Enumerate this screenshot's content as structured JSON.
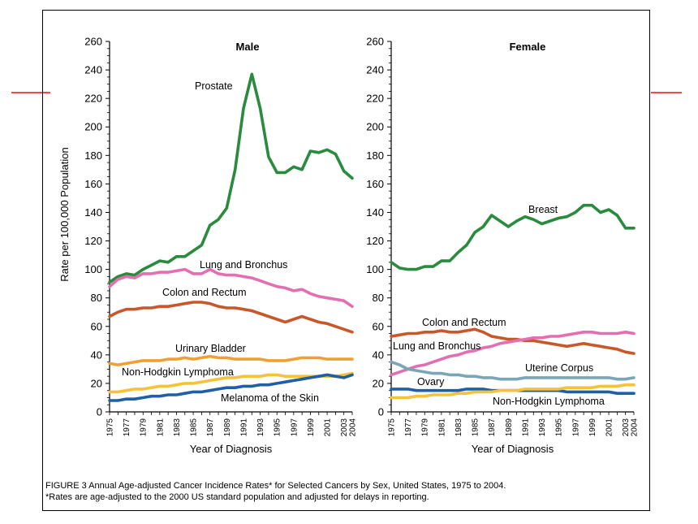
{
  "chart_data": [
    {
      "type": "line",
      "title": "Male",
      "ylabel": "Rate per 100,000 Population",
      "xlabel": "Year of Diagnosis",
      "ylim": [
        0,
        260
      ],
      "yticks": [
        0,
        20,
        40,
        60,
        80,
        100,
        120,
        140,
        160,
        180,
        200,
        220,
        240,
        260
      ],
      "xticks": [
        "1975",
        "1977",
        "1979",
        "1981",
        "1983",
        "1985",
        "1987",
        "1989",
        "1991",
        "1993",
        "1995",
        "1997",
        "1999",
        "2001",
        "2003",
        "2004"
      ],
      "x": [
        1975,
        1976,
        1977,
        1978,
        1979,
        1980,
        1981,
        1982,
        1983,
        1984,
        1985,
        1986,
        1987,
        1988,
        1989,
        1990,
        1991,
        1992,
        1993,
        1994,
        1995,
        1996,
        1997,
        1998,
        1999,
        2000,
        2001,
        2002,
        2003,
        2004
      ],
      "series": [
        {
          "name": "Prostate",
          "color": "#2a8a3e",
          "values": [
            91,
            95,
            97,
            96,
            100,
            103,
            106,
            105,
            109,
            109,
            113,
            117,
            131,
            135,
            143,
            170,
            213,
            237,
            213,
            179,
            168,
            168,
            172,
            170,
            183,
            182,
            184,
            181,
            169,
            164
          ]
        },
        {
          "name": "Lung and Bronchus",
          "color": "#e46fb0",
          "values": [
            88,
            93,
            95,
            94,
            97,
            97,
            98,
            98,
            99,
            100,
            97,
            97,
            100,
            97,
            96,
            96,
            95,
            94,
            92,
            90,
            88,
            87,
            85,
            86,
            83,
            81,
            80,
            79,
            78,
            74
          ]
        },
        {
          "name": "Colon and Rectum",
          "color": "#c8582a",
          "values": [
            67,
            70,
            72,
            72,
            73,
            73,
            74,
            74,
            75,
            76,
            77,
            77,
            76,
            74,
            73,
            73,
            72,
            71,
            69,
            67,
            65,
            63,
            65,
            67,
            65,
            63,
            62,
            60,
            58,
            56
          ]
        },
        {
          "name": "Urinary Bladder",
          "color": "#f0a033",
          "values": [
            34,
            33,
            34,
            35,
            36,
            36,
            36,
            37,
            37,
            38,
            37,
            38,
            39,
            38,
            38,
            37,
            37,
            37,
            37,
            36,
            36,
            36,
            37,
            38,
            38,
            38,
            37,
            37,
            37,
            37
          ]
        },
        {
          "name": "Non-Hodgkin Lymphoma",
          "color": "#f6c23a",
          "values": [
            14,
            14,
            15,
            16,
            16,
            17,
            18,
            18,
            19,
            20,
            20,
            21,
            22,
            23,
            24,
            24,
            25,
            25,
            25,
            26,
            26,
            25,
            25,
            25,
            25,
            25,
            25,
            25,
            26,
            27
          ]
        },
        {
          "name": "Melanoma of the Skin",
          "color": "#1f5fa8",
          "values": [
            8,
            8,
            9,
            9,
            10,
            11,
            11,
            12,
            12,
            13,
            14,
            14,
            15,
            16,
            17,
            17,
            18,
            18,
            19,
            19,
            20,
            21,
            22,
            23,
            24,
            25,
            26,
            25,
            24,
            26
          ]
        }
      ]
    },
    {
      "type": "line",
      "title": "Female",
      "xlabel": "Year of Diagnosis",
      "ylim": [
        0,
        260
      ],
      "yticks": [
        0,
        20,
        40,
        60,
        80,
        100,
        120,
        140,
        160,
        180,
        200,
        220,
        240,
        260
      ],
      "xticks": [
        "1975",
        "1977",
        "1979",
        "1981",
        "1983",
        "1985",
        "1987",
        "1989",
        "1991",
        "1993",
        "1995",
        "1997",
        "1999",
        "2001",
        "2003",
        "2004"
      ],
      "x": [
        1975,
        1976,
        1977,
        1978,
        1979,
        1980,
        1981,
        1982,
        1983,
        1984,
        1985,
        1986,
        1987,
        1988,
        1989,
        1990,
        1991,
        1992,
        1993,
        1994,
        1995,
        1996,
        1997,
        1998,
        1999,
        2000,
        2001,
        2002,
        2003,
        2004
      ],
      "series": [
        {
          "name": "Breast",
          "color": "#2a8a3e",
          "values": [
            105,
            101,
            100,
            100,
            102,
            102,
            106,
            106,
            112,
            117,
            126,
            130,
            138,
            134,
            130,
            134,
            137,
            135,
            132,
            134,
            136,
            137,
            140,
            145,
            145,
            140,
            142,
            138,
            129,
            129
          ]
        },
        {
          "name": "Colon and Rectum",
          "color": "#c8582a",
          "values": [
            53,
            54,
            55,
            55,
            56,
            56,
            57,
            56,
            56,
            57,
            58,
            56,
            53,
            52,
            51,
            51,
            50,
            50,
            49,
            48,
            47,
            46,
            47,
            48,
            47,
            46,
            45,
            44,
            42,
            41
          ]
        },
        {
          "name": "Lung and Bronchus",
          "color": "#e46fb0",
          "values": [
            26,
            28,
            30,
            32,
            33,
            35,
            37,
            39,
            40,
            42,
            43,
            45,
            46,
            48,
            49,
            50,
            51,
            52,
            52,
            53,
            53,
            54,
            55,
            56,
            56,
            55,
            55,
            55,
            56,
            55
          ]
        },
        {
          "name": "Uterine Corpus",
          "color": "#7aa6b5",
          "values": [
            35,
            33,
            30,
            29,
            28,
            27,
            27,
            26,
            26,
            25,
            25,
            24,
            24,
            23,
            23,
            23,
            24,
            24,
            24,
            24,
            24,
            24,
            24,
            24,
            24,
            24,
            24,
            23,
            23,
            24
          ]
        },
        {
          "name": "Ovary",
          "color": "#1f5fa8",
          "values": [
            16,
            16,
            16,
            15,
            15,
            15,
            15,
            15,
            15,
            16,
            16,
            16,
            15,
            15,
            15,
            15,
            15,
            15,
            15,
            15,
            15,
            14,
            14,
            14,
            14,
            14,
            14,
            13,
            13,
            13
          ]
        },
        {
          "name": "Non-Hodgkin Lymphoma",
          "color": "#f6c23a",
          "values": [
            10,
            10,
            10,
            11,
            11,
            12,
            12,
            12,
            13,
            13,
            14,
            14,
            14,
            15,
            15,
            15,
            16,
            16,
            16,
            16,
            16,
            17,
            17,
            17,
            17,
            18,
            18,
            18,
            19,
            19
          ]
        }
      ]
    }
  ],
  "caption": {
    "line1": "FIGURE 3   Annual Age-adjusted Cancer Incidence Rates* for Selected Cancers by Sex, United States, 1975 to 2004.",
    "line2": "*Rates are age-adjusted to the 2000 US standard population and adjusted for delays in reporting."
  },
  "colors": {
    "rule": "#e01010",
    "frame": "#000000"
  }
}
